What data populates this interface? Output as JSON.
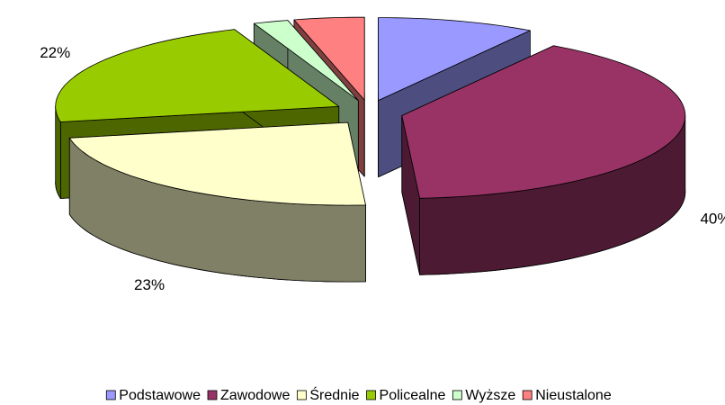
{
  "chart_data": {
    "type": "pie3d",
    "categories": [
      "Podstawowe",
      "Zawodowe",
      "Średnie",
      "Policealne",
      "Wyższe",
      "Nieustalone"
    ],
    "values": [
      9,
      40,
      23,
      22,
      2,
      4
    ],
    "value_labels": [
      "9%",
      "40%",
      "23%",
      "22%",
      "2%",
      "4%"
    ],
    "colors": [
      "#9999ff",
      "#993366",
      "#ffffcc",
      "#99cc00",
      "#ccffcc",
      "#ff8080"
    ],
    "legend": "bottom"
  }
}
